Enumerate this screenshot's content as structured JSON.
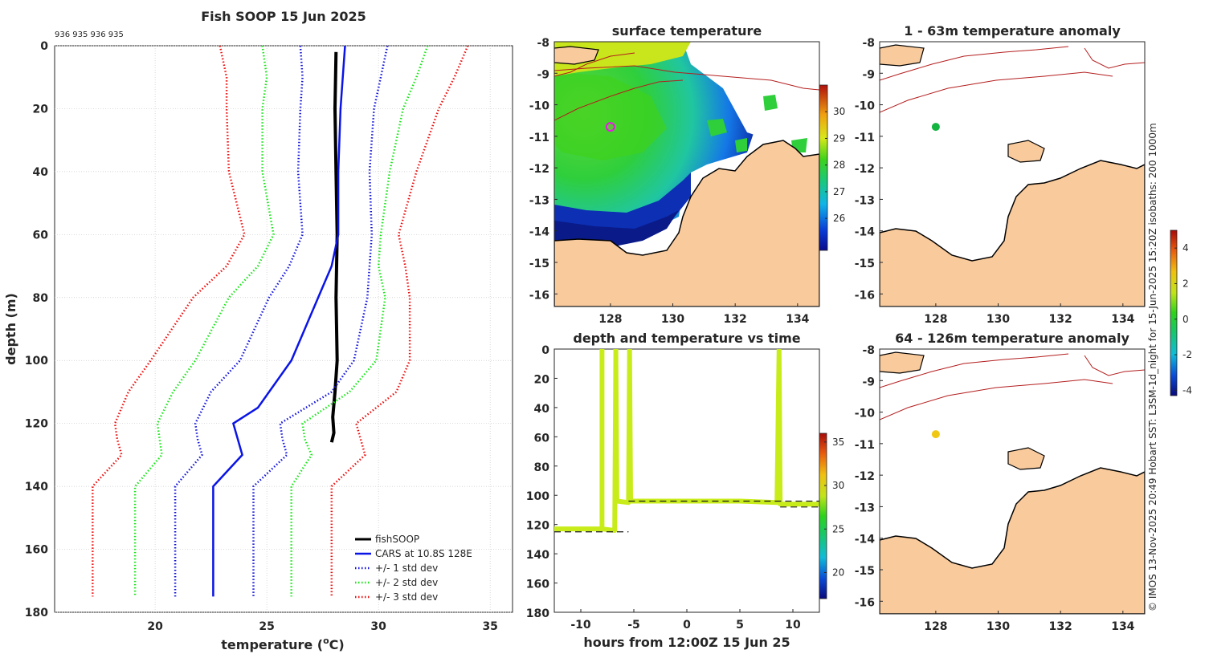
{
  "figure": {
    "credit": "© IMOS 13-Nov-2025 20:49 Hobart SST: L3SM-1d_night for 15-Jun-2025 15:20Z isobaths: 200  1000m",
    "colors": {
      "land": "#f9ca9c",
      "coast": "#000000",
      "isobath": "#b41e1e",
      "profile_obs": "#000000",
      "cars": "#0a14e6",
      "std1": "#1414dc",
      "std2": "#19e619",
      "std3": "#ee1111",
      "track": "#c8ec1a",
      "marker_surface": "#e619e6",
      "marker_anom1": "#14b440",
      "marker_anom2": "#f0c814"
    }
  },
  "chart_data": [
    {
      "id": "profile",
      "type": "line",
      "title": "Fish SOOP 15 Jun 2025",
      "subtitle": "936 935 936 935",
      "xlabel": "temperature (",
      "xlabel_sup": "o",
      "xlabel_suffix": "C)",
      "ylabel": "depth (m)",
      "xlim": [
        15.5,
        36
      ],
      "ylim": [
        0,
        180
      ],
      "y_reversed": true,
      "grid": true,
      "xticks": [
        20,
        25,
        30,
        35
      ],
      "yticks": [
        0,
        20,
        40,
        60,
        80,
        100,
        120,
        140,
        160,
        180
      ],
      "legend_position": "bottom-right",
      "series": [
        {
          "name": "fishSOOP",
          "style": "solid-thick",
          "color_key": "profile_obs",
          "points": [
            [
              28.1,
              2
            ],
            [
              28.05,
              20
            ],
            [
              28.1,
              40
            ],
            [
              28.15,
              60
            ],
            [
              28.1,
              80
            ],
            [
              28.15,
              100
            ],
            [
              28.05,
              110
            ],
            [
              27.95,
              118
            ],
            [
              28.0,
              123
            ],
            [
              27.9,
              126
            ]
          ]
        },
        {
          "name": "CARS at 10.8S 128E",
          "style": "solid",
          "color_key": "cars",
          "points": [
            [
              28.5,
              0
            ],
            [
              28.4,
              10
            ],
            [
              28.3,
              20
            ],
            [
              28.2,
              40
            ],
            [
              28.2,
              60
            ],
            [
              27.9,
              70
            ],
            [
              27.3,
              80
            ],
            [
              26.1,
              100
            ],
            [
              24.6,
              115
            ],
            [
              23.5,
              120
            ],
            [
              23.7,
              125
            ],
            [
              23.9,
              130
            ],
            [
              22.6,
              140
            ],
            [
              22.6,
              175
            ]
          ]
        },
        {
          "name": "+/- 1 std dev",
          "style": "dotted",
          "color_key": "std1",
          "points": [
            [
              26.5,
              0
            ],
            [
              26.6,
              10
            ],
            [
              26.5,
              20
            ],
            [
              26.4,
              40
            ],
            [
              26.6,
              60
            ],
            [
              26.0,
              70
            ],
            [
              25.1,
              80
            ],
            [
              23.8,
              100
            ],
            [
              22.5,
              110
            ],
            [
              21.8,
              120
            ],
            [
              21.9,
              125
            ],
            [
              22.1,
              130
            ],
            [
              20.9,
              140
            ],
            [
              20.9,
              175
            ]
          ]
        },
        {
          "name": "+/- 1 std dev",
          "style": "dotted",
          "color_key": "std1",
          "legend": false,
          "points": [
            [
              30.4,
              0
            ],
            [
              30.1,
              10
            ],
            [
              29.8,
              20
            ],
            [
              29.6,
              40
            ],
            [
              29.7,
              60
            ],
            [
              29.6,
              70
            ],
            [
              29.5,
              80
            ],
            [
              28.9,
              100
            ],
            [
              27.9,
              110
            ],
            [
              25.6,
              120
            ],
            [
              25.7,
              125
            ],
            [
              25.9,
              130
            ],
            [
              24.4,
              140
            ],
            [
              24.4,
              175
            ]
          ]
        },
        {
          "name": "+/- 2 std dev",
          "style": "dotted",
          "color_key": "std2",
          "points": [
            [
              24.8,
              0
            ],
            [
              25.0,
              10
            ],
            [
              24.8,
              20
            ],
            [
              24.8,
              40
            ],
            [
              25.3,
              60
            ],
            [
              24.6,
              70
            ],
            [
              23.3,
              80
            ],
            [
              21.8,
              100
            ],
            [
              20.8,
              110
            ],
            [
              20.1,
              120
            ],
            [
              20.2,
              125
            ],
            [
              20.3,
              130
            ],
            [
              19.1,
              140
            ],
            [
              19.1,
              175
            ]
          ]
        },
        {
          "name": "+/- 2 std dev",
          "style": "dotted",
          "color_key": "std2",
          "legend": false,
          "points": [
            [
              32.2,
              0
            ],
            [
              31.7,
              10
            ],
            [
              31.1,
              20
            ],
            [
              30.5,
              40
            ],
            [
              30.1,
              60
            ],
            [
              30.0,
              70
            ],
            [
              30.3,
              80
            ],
            [
              29.9,
              100
            ],
            [
              28.7,
              110
            ],
            [
              26.6,
              120
            ],
            [
              26.7,
              125
            ],
            [
              27.0,
              130
            ],
            [
              26.1,
              140
            ],
            [
              26.1,
              175
            ]
          ]
        },
        {
          "name": "+/- 3 std dev",
          "style": "dotted",
          "color_key": "std3",
          "points": [
            [
              22.9,
              0
            ],
            [
              23.2,
              10
            ],
            [
              23.2,
              20
            ],
            [
              23.3,
              40
            ],
            [
              24.0,
              60
            ],
            [
              23.2,
              70
            ],
            [
              21.7,
              80
            ],
            [
              19.8,
              100
            ],
            [
              18.8,
              110
            ],
            [
              18.2,
              120
            ],
            [
              18.3,
              125
            ],
            [
              18.5,
              130
            ],
            [
              17.2,
              140
            ],
            [
              17.2,
              175
            ]
          ]
        },
        {
          "name": "+/- 3 std dev",
          "style": "dotted",
          "color_key": "std3",
          "legend": false,
          "points": [
            [
              34.0,
              0
            ],
            [
              33.4,
              10
            ],
            [
              32.7,
              20
            ],
            [
              31.7,
              40
            ],
            [
              30.9,
              60
            ],
            [
              31.2,
              70
            ],
            [
              31.4,
              80
            ],
            [
              31.4,
              100
            ],
            [
              30.8,
              110
            ],
            [
              29.0,
              120
            ],
            [
              29.2,
              125
            ],
            [
              29.4,
              130
            ],
            [
              27.9,
              140
            ],
            [
              27.9,
              175
            ]
          ]
        }
      ]
    },
    {
      "id": "surface_map",
      "type": "heatmap",
      "title": "surface temperature",
      "xlim": [
        126.2,
        134.7
      ],
      "ylim": [
        -16.4,
        -8.0
      ],
      "xticks": [
        128,
        130,
        132,
        134
      ],
      "yticks": [
        -8,
        -9,
        -10,
        -11,
        -12,
        -13,
        -14,
        -15,
        -16
      ],
      "marker": [
        128.0,
        -10.7
      ],
      "colorbar": {
        "min": 24.8,
        "max": 31.0,
        "ticks": [
          26,
          27,
          28,
          29,
          30
        ]
      }
    },
    {
      "id": "anomaly_shallow",
      "type": "heatmap",
      "title": "1 - 63m temperature anomaly",
      "xlim": [
        126.2,
        134.7
      ],
      "ylim": [
        -16.4,
        -8.0
      ],
      "xticks": [
        128,
        130,
        132,
        134
      ],
      "yticks": [
        -8,
        -9,
        -10,
        -11,
        -12,
        -13,
        -14,
        -15,
        -16
      ],
      "marker": [
        128.0,
        -10.7
      ]
    },
    {
      "id": "anomaly_deep",
      "type": "heatmap",
      "title": "64 - 126m temperature anomaly",
      "xlim": [
        126.2,
        134.7
      ],
      "ylim": [
        -16.4,
        -8.0
      ],
      "xticks": [
        128,
        130,
        132,
        134
      ],
      "yticks": [
        -8,
        -9,
        -10,
        -11,
        -12,
        -13,
        -14,
        -15,
        -16
      ],
      "marker": [
        128.0,
        -10.7
      ],
      "colorbar": {
        "min": -4.3,
        "max": 5.0,
        "ticks": [
          -4,
          -2,
          0,
          2,
          4
        ]
      }
    },
    {
      "id": "depth_time",
      "type": "line",
      "title": "depth and temperature vs time",
      "xlabel": "hours from 12:00Z 15 Jun 25",
      "xlim": [
        -12.5,
        12.5
      ],
      "ylim": [
        0,
        180
      ],
      "y_reversed": true,
      "xticks": [
        -10,
        -5,
        0,
        5,
        10
      ],
      "yticks": [
        0,
        20,
        40,
        60,
        80,
        100,
        120,
        140,
        160,
        180
      ],
      "track": [
        [
          -12.5,
          123
        ],
        [
          -8.0,
          123
        ],
        [
          -8.0,
          0
        ],
        [
          -8.0,
          123
        ],
        [
          -6.8,
          124
        ],
        [
          -6.7,
          0
        ],
        [
          -6.6,
          104
        ],
        [
          -5.5,
          105
        ],
        [
          -5.4,
          0
        ],
        [
          -5.3,
          104
        ],
        [
          0,
          104
        ],
        [
          5,
          104
        ],
        [
          8.5,
          105
        ],
        [
          8.7,
          0
        ],
        [
          8.8,
          106
        ],
        [
          12.5,
          106
        ]
      ],
      "bottom_dashes": [
        [
          [
            -12.5,
            125
          ],
          [
            -5.5,
            125
          ]
        ],
        [
          [
            -5.5,
            104
          ],
          [
            12.5,
            104
          ]
        ],
        [
          [
            8.8,
            108
          ],
          [
            12.5,
            108
          ]
        ]
      ],
      "colorbar": {
        "min": 17,
        "max": 36,
        "ticks": [
          20,
          25,
          30,
          35
        ]
      }
    }
  ]
}
